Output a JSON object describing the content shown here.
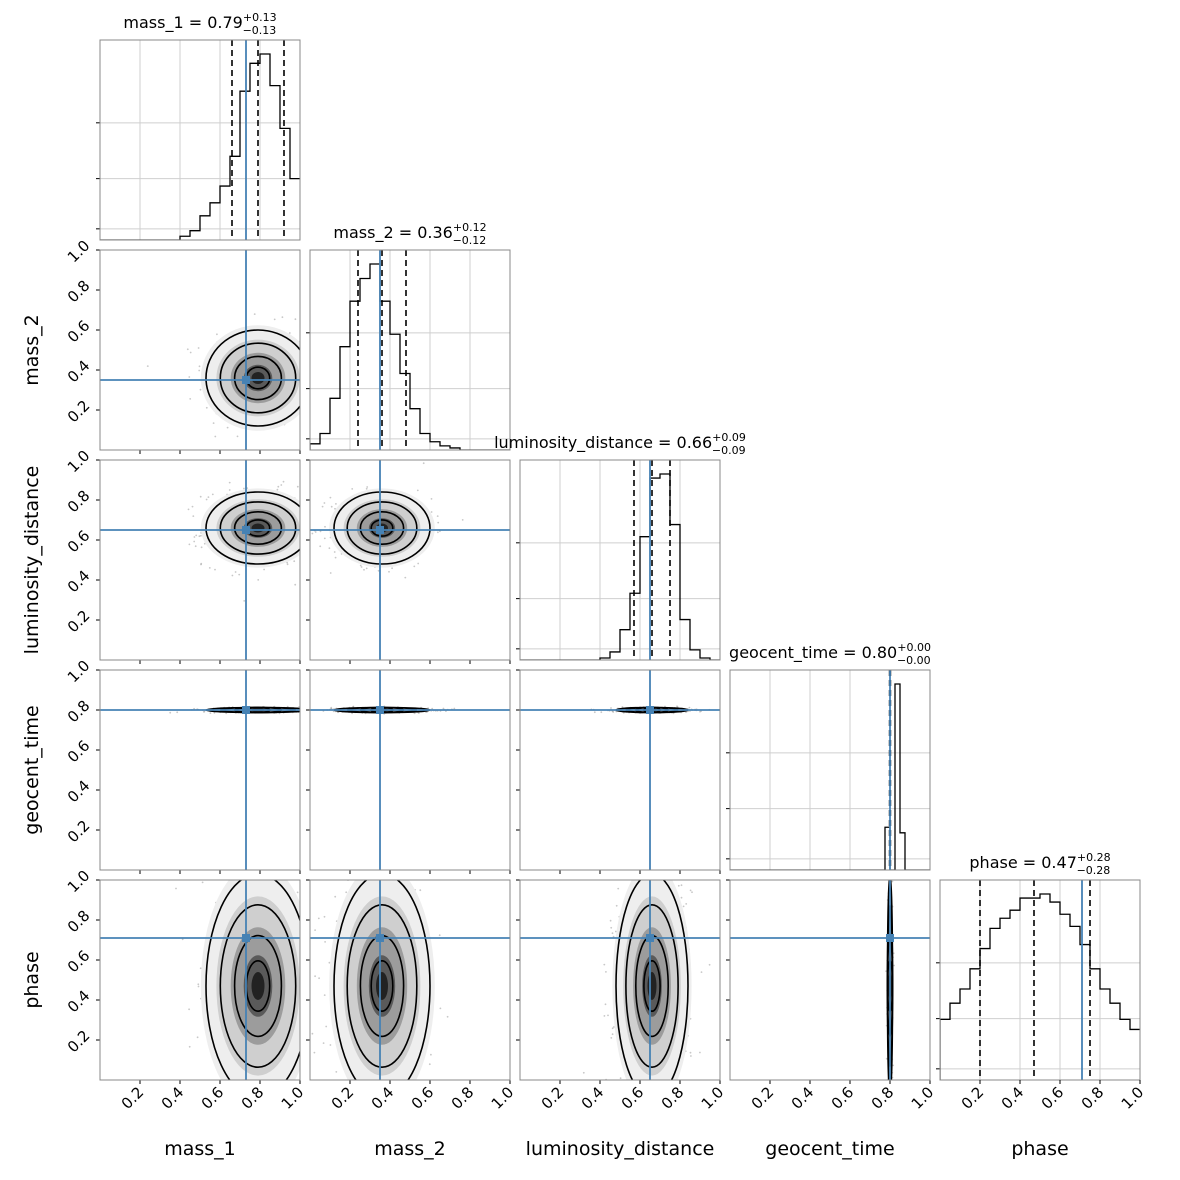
{
  "chart_data": {
    "type": "corner",
    "parameters": [
      "mass_1",
      "mass_2",
      "luminosity_distance",
      "geocent_time",
      "phase"
    ],
    "truths": [
      0.73,
      0.35,
      0.65,
      0.8,
      0.71
    ],
    "titles": [
      {
        "param": "mass_1",
        "median": "0.79",
        "plus": "+0.13",
        "minus": "−0.13"
      },
      {
        "param": "mass_2",
        "median": "0.36",
        "plus": "+0.12",
        "minus": "−0.12"
      },
      {
        "param": "luminosity_distance",
        "median": "0.66",
        "plus": "+0.09",
        "minus": "−0.09"
      },
      {
        "param": "geocent_time",
        "median": "0.80",
        "plus": "+0.00",
        "minus": "−0.00"
      },
      {
        "param": "phase",
        "median": "0.47",
        "plus": "+0.28",
        "minus": "−0.28"
      }
    ],
    "quantiles": [
      [
        0.66,
        0.79,
        0.92
      ],
      [
        0.24,
        0.36,
        0.48
      ],
      [
        0.57,
        0.66,
        0.75
      ],
      [
        0.798,
        0.8,
        0.802
      ],
      [
        0.2,
        0.47,
        0.75
      ]
    ],
    "tick_labels": [
      "0.2",
      "0.4",
      "0.6",
      "0.8",
      "1.0"
    ],
    "tick_values": [
      0.2,
      0.4,
      0.6,
      0.8,
      1.0
    ],
    "xlim": [
      0,
      1
    ],
    "ylim": [
      0,
      1
    ],
    "histograms": [
      {
        "bins": 20,
        "counts": [
          0,
          0,
          0,
          0,
          0,
          0,
          0,
          0,
          0.02,
          0.05,
          0.13,
          0.2,
          0.29,
          0.45,
          0.8,
          0.95,
          1.0,
          0.83,
          0.6,
          0.33
        ]
      },
      {
        "bins": 20,
        "counts": [
          0.03,
          0.08,
          0.25,
          0.5,
          0.72,
          0.83,
          0.9,
          0.72,
          0.56,
          0.37,
          0.2,
          0.08,
          0.04,
          0.02,
          0.01,
          0,
          0,
          0,
          0,
          0
        ]
      },
      {
        "bins": 20,
        "counts": [
          0,
          0,
          0,
          0,
          0,
          0,
          0,
          0,
          0.01,
          0.04,
          0.15,
          0.33,
          0.61,
          0.9,
          0.92,
          0.67,
          0.2,
          0.05,
          0.01,
          0
        ]
      },
      {
        "bins": 40,
        "counts": [
          0,
          0,
          0,
          0,
          0,
          0,
          0,
          0,
          0,
          0,
          0,
          0,
          0,
          0,
          0,
          0,
          0,
          0,
          0,
          0,
          0,
          0,
          0,
          0,
          0,
          0,
          0,
          0,
          0,
          0,
          0,
          0.23,
          0,
          1.0,
          0.2,
          0,
          0,
          0,
          0,
          0
        ]
      },
      {
        "bins": 20,
        "counts": [
          0.3,
          0.38,
          0.45,
          0.55,
          0.65,
          0.75,
          0.8,
          0.84,
          0.9,
          0.9,
          0.92,
          0.88,
          0.82,
          0.76,
          0.67,
          0.55,
          0.45,
          0.38,
          0.3,
          0.25
        ]
      }
    ],
    "sigma": [
      0.13,
      0.12,
      0.09,
      0.006,
      0.28
    ]
  },
  "colors": {
    "truth": "#4682b4",
    "axis": "#888888",
    "grid": "#cfcfcf",
    "ink": "#000000"
  }
}
